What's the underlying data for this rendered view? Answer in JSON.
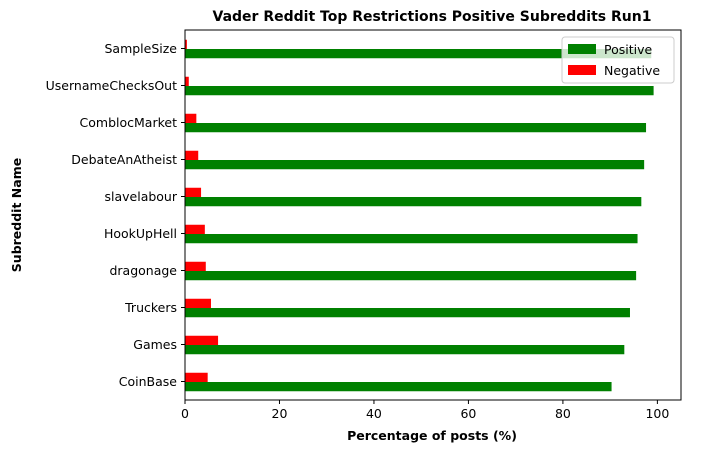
{
  "chart_data": {
    "type": "bar",
    "orientation": "horizontal",
    "title": "Vader Reddit Top Restrictions Positive Subreddits Run1",
    "xlabel": "Percentage of posts (%)",
    "ylabel": "Subreddit Name",
    "xlim": [
      0,
      105
    ],
    "xticks": [
      0,
      20,
      40,
      60,
      80,
      100
    ],
    "grid": false,
    "legend_position": "top-right",
    "categories": [
      "CoinBase",
      "Games",
      "Truckers",
      "dragonage",
      "HookUpHell",
      "slavelabour",
      "DebateAnAtheist",
      "ComblocMarket",
      "UsernameChecksOut",
      "SampleSize"
    ],
    "series": [
      {
        "name": "Positive",
        "color": "#008000",
        "values": [
          90.3,
          93.0,
          94.2,
          95.5,
          95.8,
          96.6,
          97.2,
          97.6,
          99.2,
          98.7
        ]
      },
      {
        "name": "Negative",
        "color": "#ff0000",
        "values": [
          4.8,
          7.0,
          5.5,
          4.4,
          4.2,
          3.4,
          2.8,
          2.4,
          0.8,
          0.4
        ]
      }
    ]
  }
}
